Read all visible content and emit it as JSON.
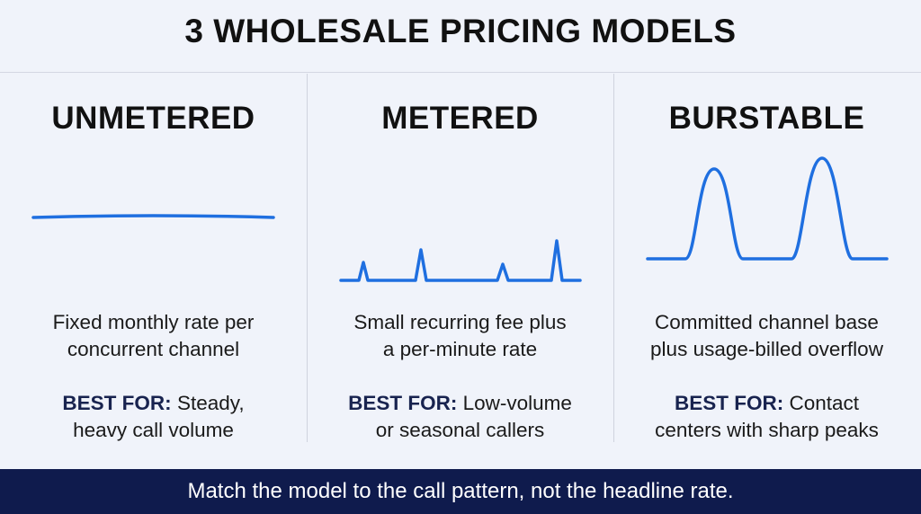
{
  "title": "3 WHOLESALE PRICING MODELS",
  "models": [
    {
      "name": "UNMETERED",
      "description_lines": [
        "Fixed monthly rate per",
        "concurrent channel"
      ],
      "best_for_label": "BEST FOR:",
      "best_for_lines": [
        "Steady,",
        "heavy call volume"
      ],
      "graph": "flat-line"
    },
    {
      "name": "METERED",
      "description_lines": [
        "Small recurring fee plus",
        "a per-minute rate"
      ],
      "best_for_label": "BEST FOR:",
      "best_for_lines": [
        "Low-volume",
        "or seasonal callers"
      ],
      "graph": "small-spikes"
    },
    {
      "name": "BURSTABLE",
      "description_lines": [
        "Committed channel base",
        "plus usage-billed overflow"
      ],
      "best_for_label": "BEST FOR:",
      "best_for_lines": [
        "Contact",
        "centers with sharp peaks"
      ],
      "graph": "large-peaks"
    }
  ],
  "footer": "Match the model to the call pattern, not the headline rate.",
  "colors": {
    "line": "#1f6fe0",
    "footer_bg": "#0f1b4d",
    "best_for_label": "#18234f",
    "background": "#f0f3fa"
  }
}
